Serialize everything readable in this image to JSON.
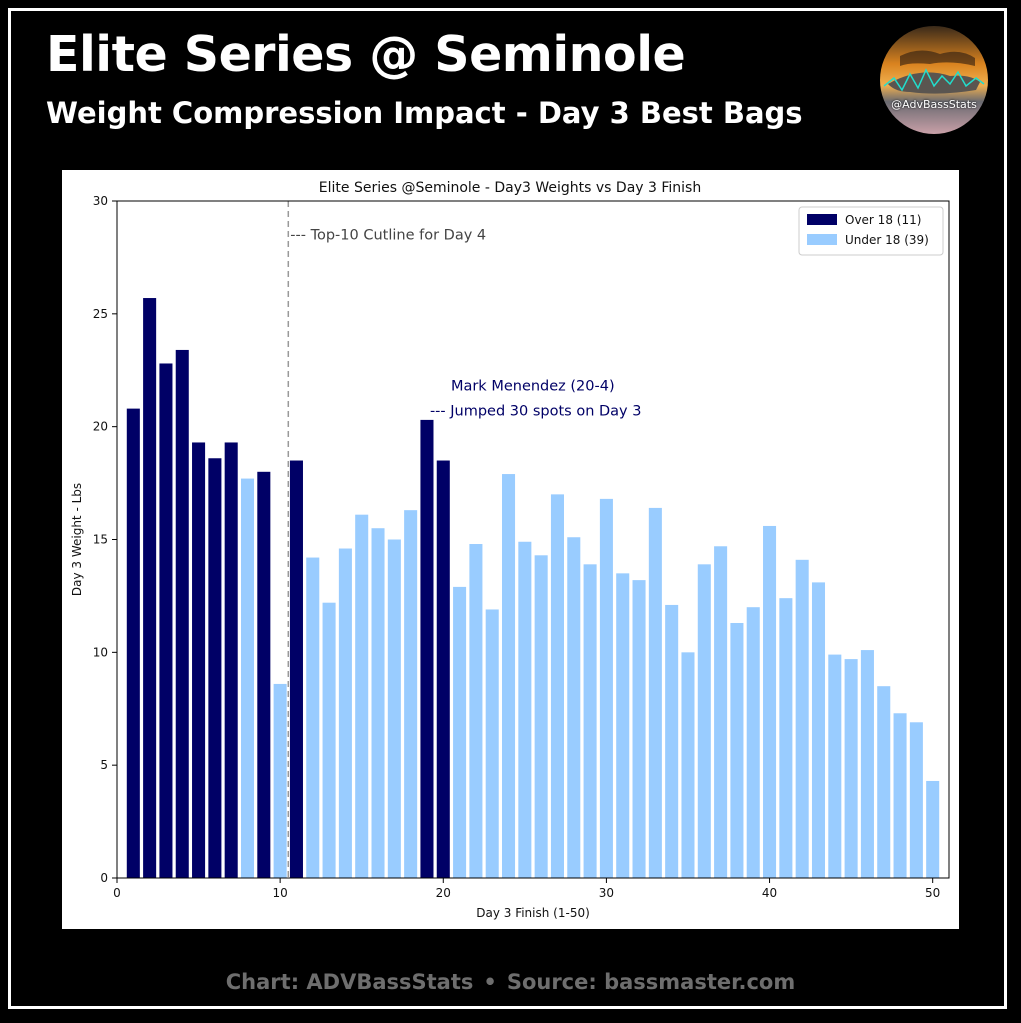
{
  "header": {
    "title": "Elite Series @ Seminole",
    "subtitle": "Weight Compression Impact - Day 3 Best Bags"
  },
  "logo": {
    "label": "@AdvBassStats"
  },
  "footer": {
    "chart_credit": "Chart: ADVBassStats",
    "separator": "•",
    "source": "Source: bassmaster.com"
  },
  "colors": {
    "over": "#000066",
    "under": "#99ccff",
    "cutline": "#999999",
    "annotation": "#000066"
  },
  "chart_data": {
    "type": "bar",
    "title": "Elite Series @Seminole - Day3 Weights vs Day 3 Finish",
    "xlabel": "Day 3 Finish (1-50)",
    "ylabel": "Day 3 Weight - Lbs",
    "xlim": [
      0,
      51
    ],
    "ylim": [
      0,
      30
    ],
    "xticks": [
      0,
      10,
      20,
      30,
      40,
      50
    ],
    "yticks": [
      0,
      5,
      10,
      15,
      20,
      25,
      30
    ],
    "legend": {
      "placement": "top-right",
      "entries": [
        "Over 18 (11)",
        "Under 18 (39)"
      ]
    },
    "x": [
      1,
      2,
      3,
      4,
      5,
      6,
      7,
      8,
      9,
      10,
      11,
      12,
      13,
      14,
      15,
      16,
      17,
      18,
      19,
      20,
      21,
      22,
      23,
      24,
      25,
      26,
      27,
      28,
      29,
      30,
      31,
      32,
      33,
      34,
      35,
      36,
      37,
      38,
      39,
      40,
      41,
      42,
      43,
      44,
      45,
      46,
      47,
      48,
      49,
      50
    ],
    "values": [
      20.8,
      25.7,
      22.8,
      23.4,
      19.3,
      18.6,
      19.3,
      17.7,
      18.0,
      8.6,
      18.5,
      14.2,
      12.2,
      14.6,
      16.1,
      15.5,
      15.0,
      16.3,
      20.3,
      18.5,
      12.9,
      14.8,
      11.9,
      17.9,
      14.9,
      14.3,
      17.0,
      15.1,
      13.9,
      16.8,
      13.5,
      13.2,
      16.4,
      12.1,
      10.0,
      13.9,
      14.7,
      11.3,
      12.0,
      15.6,
      12.4,
      14.1,
      13.1,
      9.9,
      9.7,
      10.1,
      8.5,
      7.3,
      6.9,
      4.3
    ],
    "group": [
      "over",
      "over",
      "over",
      "over",
      "over",
      "over",
      "over",
      "under",
      "over",
      "under",
      "over",
      "under",
      "under",
      "under",
      "under",
      "under",
      "under",
      "under",
      "over",
      "over",
      "under",
      "under",
      "under",
      "under",
      "under",
      "under",
      "under",
      "under",
      "under",
      "under",
      "under",
      "under",
      "under",
      "under",
      "under",
      "under",
      "under",
      "under",
      "under",
      "under",
      "under",
      "under",
      "under",
      "under",
      "under",
      "under",
      "under",
      "under",
      "under",
      "under"
    ],
    "cutline": {
      "x": 10.5,
      "label": "--- Top-10 Cutline for Day 4"
    },
    "annotation": {
      "x": 19,
      "line1": "Mark Menendez (20-4)",
      "line2": "--- Jumped 30 spots on Day 3"
    }
  }
}
